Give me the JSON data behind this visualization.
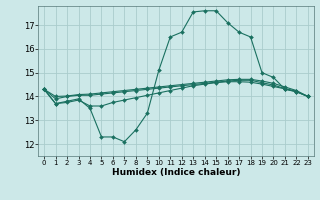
{
  "xlabel": "Humidex (Indice chaleur)",
  "background_color": "#cce8e8",
  "grid_color": "#aacccc",
  "line_color": "#1a7060",
  "x_ticks": [
    0,
    1,
    2,
    3,
    4,
    5,
    6,
    7,
    8,
    9,
    10,
    11,
    12,
    13,
    14,
    15,
    16,
    17,
    18,
    19,
    20,
    21,
    22,
    23
  ],
  "y_ticks": [
    12,
    13,
    14,
    15,
    16,
    17
  ],
  "ylim": [
    11.5,
    17.8
  ],
  "xlim": [
    -0.5,
    23.5
  ],
  "lines": [
    {
      "x": [
        0,
        1,
        2,
        3,
        4,
        5,
        6,
        7,
        8,
        9,
        10,
        11,
        12,
        13,
        14,
        15,
        16,
        17,
        18,
        19,
        20,
        21,
        22,
        23
      ],
      "y": [
        14.3,
        13.7,
        13.8,
        13.9,
        13.5,
        12.3,
        12.3,
        12.1,
        12.6,
        13.3,
        15.1,
        16.5,
        16.7,
        17.55,
        17.6,
        17.6,
        17.1,
        16.7,
        16.5,
        15.0,
        14.8,
        14.3,
        14.2,
        14.0
      ]
    },
    {
      "x": [
        0,
        1,
        2,
        3,
        4,
        5,
        6,
        7,
        8,
        9,
        10,
        11,
        12,
        13,
        14,
        15,
        16,
        17,
        18,
        19,
        20,
        21,
        22,
        23
      ],
      "y": [
        14.3,
        13.7,
        13.75,
        13.85,
        13.6,
        13.6,
        13.75,
        13.85,
        13.95,
        14.05,
        14.15,
        14.25,
        14.35,
        14.45,
        14.52,
        14.58,
        14.62,
        14.62,
        14.6,
        14.52,
        14.42,
        14.32,
        14.2,
        14.0
      ]
    },
    {
      "x": [
        0,
        1,
        2,
        3,
        4,
        5,
        6,
        7,
        8,
        9,
        10,
        11,
        12,
        13,
        14,
        15,
        16,
        17,
        18,
        19,
        20,
        21,
        22,
        23
      ],
      "y": [
        14.3,
        13.9,
        14.0,
        14.05,
        14.05,
        14.1,
        14.15,
        14.2,
        14.25,
        14.3,
        14.35,
        14.4,
        14.45,
        14.5,
        14.55,
        14.6,
        14.65,
        14.68,
        14.68,
        14.58,
        14.48,
        14.33,
        14.22,
        14.0
      ]
    },
    {
      "x": [
        0,
        1,
        2,
        3,
        4,
        5,
        6,
        7,
        8,
        9,
        10,
        11,
        12,
        13,
        14,
        15,
        16,
        17,
        18,
        19,
        20,
        21,
        22,
        23
      ],
      "y": [
        14.3,
        14.0,
        14.02,
        14.08,
        14.1,
        14.15,
        14.2,
        14.25,
        14.3,
        14.35,
        14.4,
        14.45,
        14.5,
        14.55,
        14.6,
        14.65,
        14.7,
        14.72,
        14.72,
        14.65,
        14.55,
        14.4,
        14.25,
        14.0
      ]
    }
  ]
}
